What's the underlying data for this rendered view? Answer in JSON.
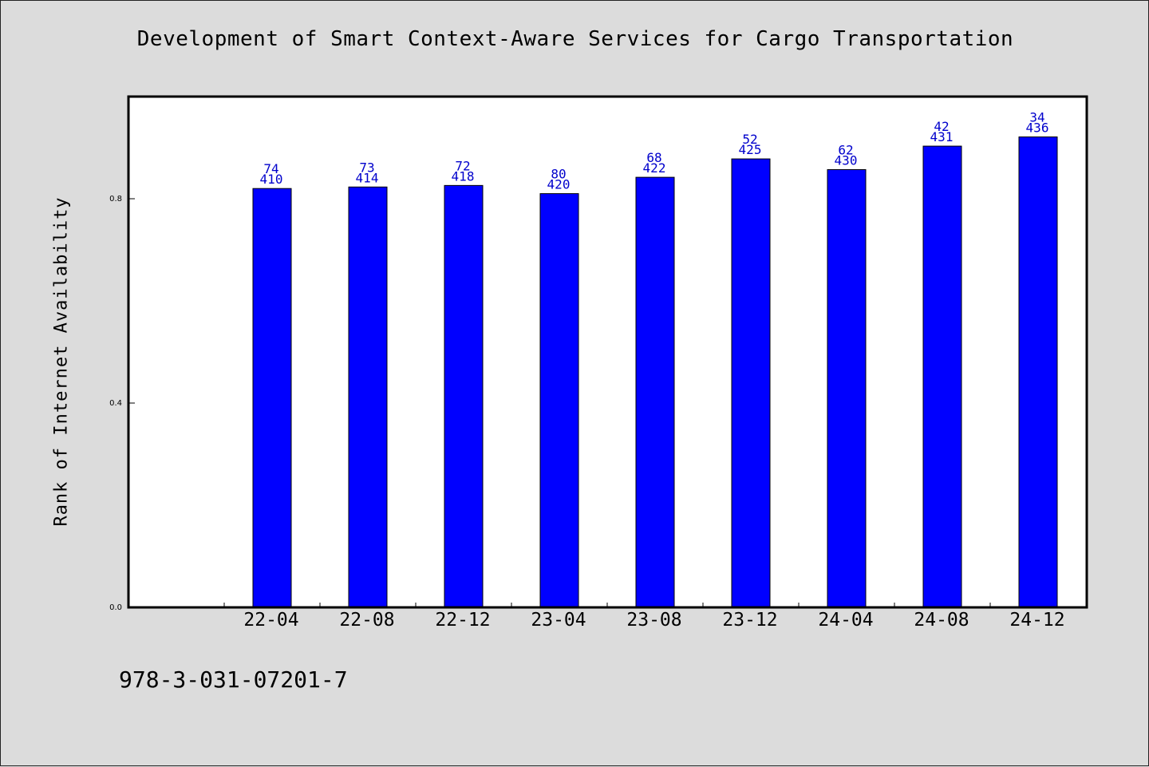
{
  "chart_data": {
    "type": "bar",
    "title": "Development of Smart Context-Aware Services for Cargo Transportation",
    "xlabel": "",
    "ylabel": "Rank of Internet Availability",
    "ylim": [
      0,
      1.0
    ],
    "yticks": [
      "0.0",
      "0.4",
      "0.8"
    ],
    "grid": false,
    "categories": [
      "22-04",
      "22-08",
      "22-12",
      "23-04",
      "23-08",
      "23-12",
      "24-04",
      "24-08",
      "24-12"
    ],
    "values": [
      0.82,
      0.823,
      0.826,
      0.81,
      0.842,
      0.878,
      0.857,
      0.903,
      0.921
    ],
    "label_top": [
      "74",
      "73",
      "72",
      "80",
      "68",
      "52",
      "62",
      "42",
      "34"
    ],
    "label_bottom": [
      "410",
      "414",
      "418",
      "420",
      "422",
      "425",
      "430",
      "431",
      "436"
    ],
    "bar_color": "#0000ff",
    "label_color": "#0000cc"
  },
  "footer": {
    "isbn": "978-3-031-07201-7"
  }
}
